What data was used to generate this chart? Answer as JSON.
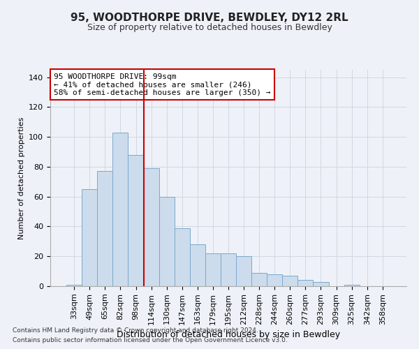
{
  "title": "95, WOODTHORPE DRIVE, BEWDLEY, DY12 2RL",
  "subtitle": "Size of property relative to detached houses in Bewdley",
  "xlabel": "Distribution of detached houses by size in Bewdley",
  "ylabel": "Number of detached properties",
  "footnote1": "Contains HM Land Registry data © Crown copyright and database right 2024.",
  "footnote2": "Contains public sector information licensed under the Open Government Licence v3.0.",
  "annotation_line1": "95 WOODTHORPE DRIVE: 99sqm",
  "annotation_line2": "← 41% of detached houses are smaller (246)",
  "annotation_line3": "58% of semi-detached houses are larger (350) →",
  "categories": [
    "33sqm",
    "49sqm",
    "65sqm",
    "82sqm",
    "98sqm",
    "114sqm",
    "130sqm",
    "147sqm",
    "163sqm",
    "179sqm",
    "195sqm",
    "212sqm",
    "228sqm",
    "244sqm",
    "260sqm",
    "277sqm",
    "293sqm",
    "309sqm",
    "325sqm",
    "342sqm",
    "358sqm"
  ],
  "values": [
    1,
    65,
    77,
    103,
    88,
    79,
    60,
    39,
    28,
    22,
    22,
    20,
    9,
    8,
    7,
    4,
    3,
    0,
    1,
    0,
    0
  ],
  "bar_color": "#ccdcec",
  "bar_edge_color": "#7aa8cc",
  "vline_color": "#cc0000",
  "vline_x_idx": 4,
  "annotation_box_color": "#cc0000",
  "annotation_bg": "#ffffff",
  "ylim": [
    0,
    145
  ],
  "yticks": [
    0,
    20,
    40,
    60,
    80,
    100,
    120,
    140
  ],
  "grid_color": "#d0d8e0",
  "bg_color": "#eef2f8",
  "title_fontsize": 11,
  "subtitle_fontsize": 9,
  "ylabel_fontsize": 8,
  "xlabel_fontsize": 9,
  "tick_fontsize": 8,
  "annot_fontsize": 8,
  "footnote_fontsize": 6.5
}
